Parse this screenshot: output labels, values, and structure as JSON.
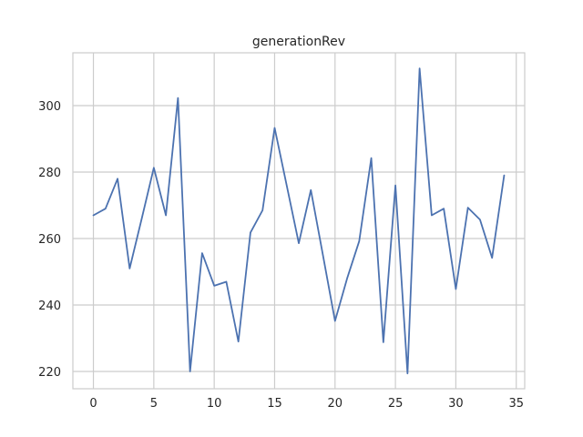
{
  "chart_data": {
    "type": "line",
    "title": "generationRev",
    "xlabel": "",
    "ylabel": "",
    "xlim": [
      -1.7,
      35.7
    ],
    "ylim": [
      214.8,
      315.9
    ],
    "xticks": [
      0,
      5,
      10,
      15,
      20,
      25,
      30,
      35
    ],
    "yticks": [
      220,
      240,
      260,
      280,
      300
    ],
    "grid": true,
    "legend": "none",
    "colors": {
      "line": "#4c72b0",
      "grid": "#cccccc",
      "text": "#262626",
      "background": "#ffffff"
    },
    "series": [
      {
        "x": [
          0,
          1,
          2,
          3,
          4,
          5,
          6,
          7,
          8,
          9,
          10,
          11,
          12,
          13,
          14,
          15,
          16,
          17,
          18,
          19,
          20,
          21,
          22,
          23,
          24,
          25,
          26,
          27,
          28,
          29,
          30,
          31,
          32,
          33,
          34
        ],
        "values": [
          267.0,
          269.0,
          278.0,
          251.0,
          266.0,
          281.3,
          267.0,
          302.3,
          220.0,
          255.6,
          245.8,
          247.0,
          229.0,
          261.8,
          268.5,
          293.3,
          276.0,
          258.6,
          274.6,
          255.0,
          235.2,
          248.0,
          259.2,
          284.2,
          228.8,
          276.0,
          219.4,
          311.2,
          267.0,
          269.0,
          244.8,
          269.3,
          265.7,
          254.2,
          279.0
        ]
      }
    ]
  }
}
